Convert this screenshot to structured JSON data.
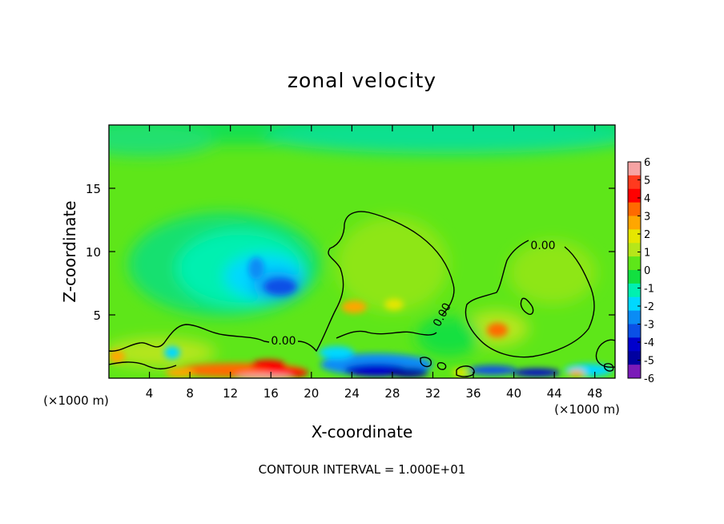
{
  "chart_data": {
    "type": "heatmap",
    "title": "zonal velocity",
    "xlabel": "X-coordinate",
    "ylabel": "Z-coordinate",
    "x_unit": "(×1000 m)",
    "xlim": [
      0,
      50
    ],
    "ylim": [
      0,
      20
    ],
    "x_ticks": [
      4,
      8,
      12,
      16,
      20,
      24,
      28,
      32,
      36,
      40,
      44,
      48
    ],
    "y_ticks": [
      5,
      10,
      15
    ],
    "colorbar": {
      "labels": [
        "6",
        "5",
        "4",
        "3",
        "2",
        "1",
        "0",
        "-1",
        "-2",
        "-3",
        "-4",
        "-5",
        "-6"
      ],
      "colors": [
        "#f6a3a3",
        "#ff3a1e",
        "#ff0000",
        "#ff6a00",
        "#ffa600",
        "#e6e600",
        "#b6e61a",
        "#5ee619",
        "#12e040",
        "#00f0b0",
        "#00d8ff",
        "#0a8cf5",
        "#0a50e6",
        "#0000cc",
        "#0000a0",
        "#7a1ab8"
      ]
    },
    "contour_label": "0.00",
    "contour_interval_text": "CONTOUR INTERVAL = 1.000E+01",
    "features": [
      {
        "name": "negative core (blue)",
        "x": 17,
        "z": 7.5,
        "value": -3
      },
      {
        "name": "negative lobe (cyan)",
        "x": 12,
        "z": 8.5,
        "value": -1.5
      },
      {
        "name": "positive lobe",
        "x": 25,
        "z": 5.5,
        "value": 1.5
      },
      {
        "name": "positive lobe",
        "x": 38.5,
        "z": 3.7,
        "value": 2.5
      },
      {
        "name": "strong positive near surface",
        "x": 16,
        "z": 0.4,
        "value": 4.5
      },
      {
        "name": "strong negative near surface",
        "x": 27,
        "z": 0.5,
        "value": -4
      }
    ]
  }
}
